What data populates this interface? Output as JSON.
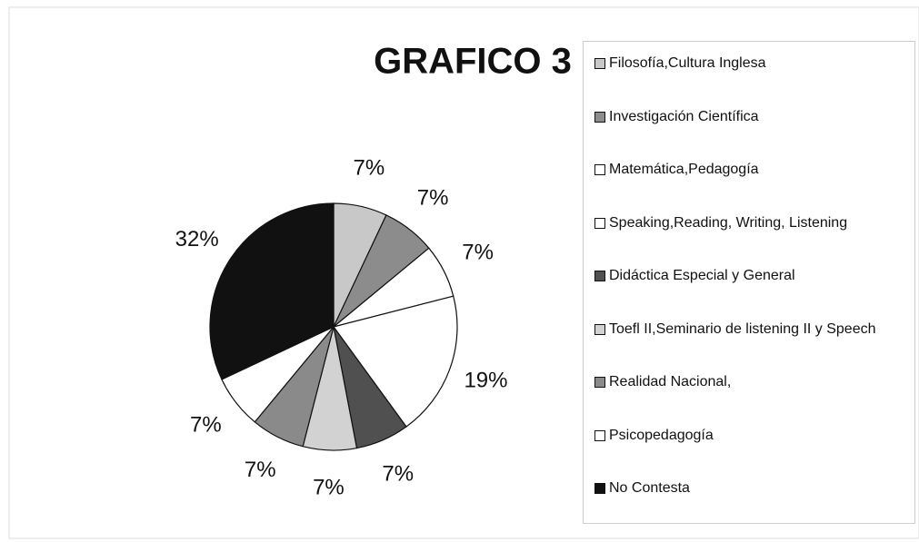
{
  "chart_data": {
    "type": "pie",
    "title": "GRAFICO 3",
    "categories": [
      "Filosofía,Cultura Inglesa",
      "Investigación Científica",
      "Matemática,Pedagogía",
      "Speaking,Reading, Writing, Listening",
      "Didáctica Especial y General",
      "Toefl II,Seminario de listening II y Speech",
      "Realidad Nacional,",
      "Psicopedagogía",
      "No Contesta"
    ],
    "values": [
      7,
      7,
      7,
      19,
      7,
      7,
      7,
      7,
      32
    ],
    "value_labels": [
      "7%",
      "7%",
      "7%",
      "19%",
      "7%",
      "7%",
      "7%",
      "7%",
      "32%"
    ],
    "colors": [
      "#c8c8c8",
      "#8c8c8c",
      "#ffffff",
      "#ffffff",
      "#505050",
      "#d2d2d2",
      "#8a8a8a",
      "#ffffff",
      "#111111"
    ],
    "legend": "right"
  }
}
